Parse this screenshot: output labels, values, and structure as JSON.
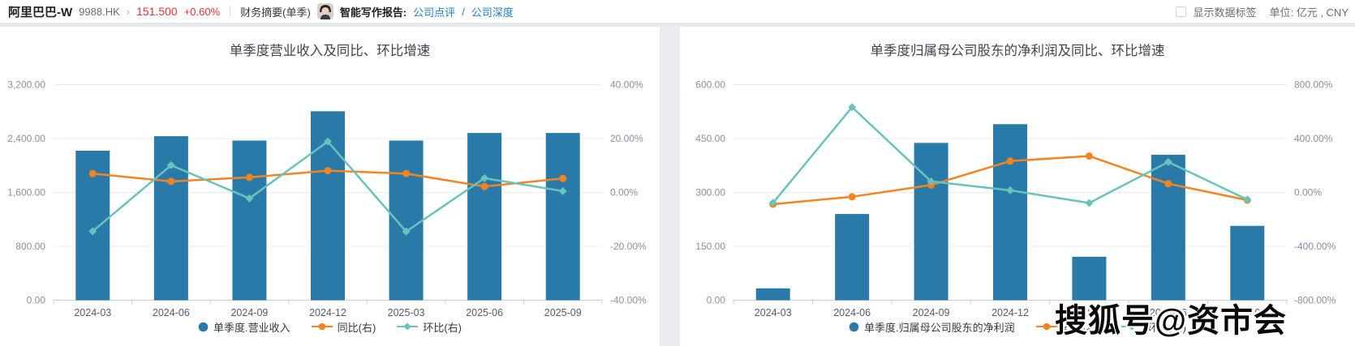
{
  "header": {
    "stock_name": "阿里巴巴-W",
    "stock_code": "9988.HK",
    "chevron": "›",
    "price": "151.500",
    "change": "+0.60%",
    "menu_financial": "财务摘要(单季)",
    "ai_report_label": "智能写作报告:",
    "link_comment": "公司点评",
    "link_separator": "/",
    "link_depth": "公司深度",
    "show_labels_checkbox_label": "显示数据标签",
    "unit_label": "单位: 亿元 , CNY"
  },
  "watermark": "搜狐号@资市会",
  "colors": {
    "bar_blue": "#2a7aa9",
    "yoy_orange": "#f5831f",
    "qoq_teal": "#67c3bc",
    "price_red": "#e63333",
    "link_blue": "#1e7ec8"
  },
  "chart_data": [
    {
      "type": "bar",
      "title": "单季度营业收入及同比、环比增速",
      "categories": [
        "2024-03",
        "2024-06",
        "2024-09",
        "2024-12",
        "2025-03",
        "2025-06",
        "2025-09"
      ],
      "series": [
        {
          "name": "单季度.营业收入",
          "type": "bar",
          "axis": "left",
          "symbol": "circle",
          "color": "#2a7aa9",
          "values": [
            2220,
            2435,
            2370,
            2805,
            2370,
            2483,
            2483
          ]
        },
        {
          "name": "同比(右)",
          "type": "line",
          "axis": "right",
          "symbol": "circle",
          "color": "#f5831f",
          "values": [
            7.0,
            4.1,
            5.6,
            8.1,
            7.0,
            2.2,
            5.2
          ]
        },
        {
          "name": "环比(右)",
          "type": "line",
          "axis": "right",
          "symbol": "diamond",
          "color": "#67c3bc",
          "values": [
            -14.4,
            10.1,
            -2.2,
            18.9,
            -14.5,
            5.3,
            0.5
          ]
        }
      ],
      "left_axis": {
        "min": 0,
        "max": 3200,
        "ticks": [
          "3,200.00",
          "2,400.00",
          "1,600.00",
          "800.00",
          "0.00"
        ]
      },
      "right_axis": {
        "min": -40,
        "max": 40,
        "ticks": [
          "40.00%",
          "20.00%",
          "0.00%",
          "-20.00%",
          "-40.00%"
        ]
      },
      "grid": true,
      "legend_position": "bottom"
    },
    {
      "type": "bar",
      "title": "单季度归属母公司股东的净利润及同比、环比增速",
      "categories": [
        "2024-03",
        "2024-06",
        "2024-09",
        "2024-12",
        "2025-03",
        "2025-06",
        "2025-09"
      ],
      "series": [
        {
          "name": "单季度.归属母公司股东的净利润",
          "type": "bar",
          "axis": "left",
          "symbol": "circle",
          "color": "#2a7aa9",
          "values": [
            33,
            240,
            438,
            490,
            121,
            405,
            207
          ]
        },
        {
          "name": "同比(右)",
          "type": "line",
          "axis": "right",
          "symbol": "circle",
          "color": "#f5831f",
          "values": [
            -87,
            -32,
            55,
            233,
            270,
            65,
            -57
          ]
        },
        {
          "name": "环比(右)",
          "type": "line",
          "axis": "right",
          "symbol": "diamond",
          "color": "#67c3bc",
          "values": [
            -77,
            633,
            82,
            16,
            -78,
            226,
            -53
          ]
        }
      ],
      "left_axis": {
        "min": 0,
        "max": 600,
        "ticks": [
          "600.00",
          "450.00",
          "300.00",
          "150.00",
          "0.00"
        ]
      },
      "right_axis": {
        "min": -800,
        "max": 800,
        "ticks": [
          "800.00%",
          "400.00%",
          "0.00%",
          "-400.00%",
          "-800.00%"
        ]
      },
      "grid": true,
      "legend_position": "bottom"
    }
  ]
}
